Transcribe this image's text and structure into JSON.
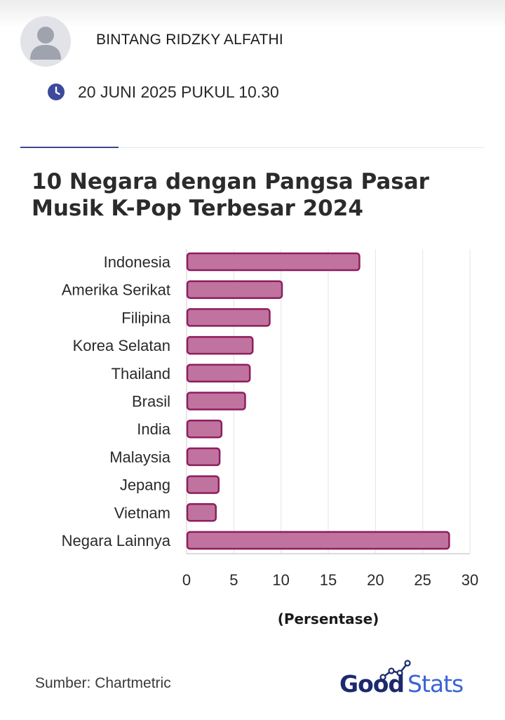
{
  "article": {
    "author": "BINTANG RIDZKY ALFATHI",
    "date": "20 JUNI 2025 PUKUL 10.30"
  },
  "icons": {
    "avatar": "user-avatar-icon",
    "clock": "clock-icon"
  },
  "colors": {
    "bar_fill": "#c0739f",
    "bar_stroke": "#8e1e5c",
    "accent": "#3d4a8c",
    "brand_navy": "#1c2a6d",
    "brand_blue": "#3b63d6"
  },
  "chart_data": {
    "type": "bar",
    "orientation": "horizontal",
    "title": "10 Negara dengan Pangsa Pasar Musik K-Pop Terbesar 2024",
    "xlabel": "(Persentase)",
    "ylabel": "",
    "categories": [
      "Indonesia",
      "Amerika Serikat",
      "Filipina",
      "Korea Selatan",
      "Thailand",
      "Brasil",
      "India",
      "Malaysia",
      "Jepang",
      "Vietnam",
      "Negara Lainnya"
    ],
    "values": [
      18.3,
      10.1,
      8.8,
      7.0,
      6.7,
      6.2,
      3.7,
      3.5,
      3.4,
      3.1,
      27.8
    ],
    "xlim": [
      0,
      30
    ],
    "xticks": [
      0,
      5,
      10,
      15,
      20,
      25,
      30
    ],
    "grid": true
  },
  "footer": {
    "source": "Sumber: Chartmetric",
    "logo_good": "Good",
    "logo_stats": "Stats"
  }
}
